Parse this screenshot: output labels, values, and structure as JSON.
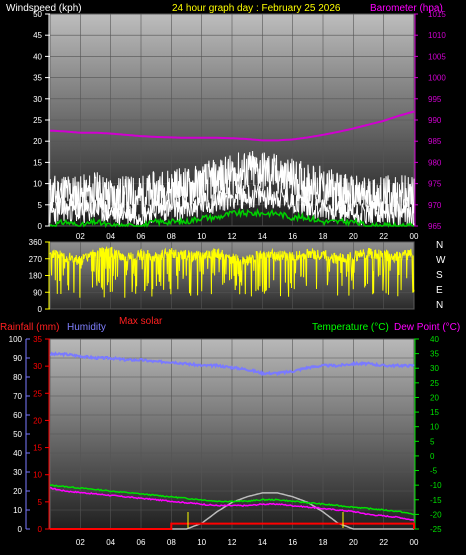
{
  "header": {
    "left_label": "Windspeed (kph)",
    "center_label": "24 hour graph day : February 25 2026",
    "right_label": "Barometer (hpa)"
  },
  "colors": {
    "wind": "#ffffff",
    "gust": "#ffffff",
    "wind_avg": "#00d000",
    "barometer": "#d000d0",
    "wind_dir": "#ffff00",
    "humidity": "#7a7aff",
    "temperature": "#00e000",
    "dew_point": "#ff00ff",
    "rainfall": "#ff0000",
    "solar": "#bbbbbb",
    "label_yellow": "#ffff00",
    "label_red": "#ff2020",
    "label_blue": "#8080ff",
    "label_green": "#00ff00",
    "label_magenta": "#ff00ff"
  },
  "x_ticks": [
    "02",
    "04",
    "06",
    "08",
    "10",
    "12",
    "14",
    "16",
    "18",
    "20",
    "22",
    "00"
  ],
  "chart_data": [
    {
      "type": "line",
      "title": "24 hour graph day : February 25 2026",
      "ylabel": "Windspeed (kph)",
      "y2label": "Barometer (hpa)",
      "ylim": [
        0,
        50
      ],
      "y2lim": [
        965,
        1015
      ],
      "yticks": [
        0,
        5,
        10,
        15,
        20,
        25,
        30,
        35,
        40,
        45,
        50
      ],
      "y2ticks": [
        965,
        970,
        975,
        980,
        985,
        990,
        995,
        1000,
        1005,
        1010,
        1015
      ],
      "x_hours": [
        0,
        1,
        2,
        3,
        4,
        5,
        6,
        7,
        8,
        9,
        10,
        11,
        12,
        13,
        14,
        15,
        16,
        17,
        18,
        19,
        20,
        21,
        22,
        23,
        24
      ],
      "series": [
        {
          "values": [
            3,
            4,
            3,
            4,
            3,
            3,
            3,
            4,
            4,
            4,
            5,
            6,
            7,
            7,
            7,
            7,
            6,
            5,
            4,
            4,
            3,
            3,
            3,
            3,
            3
          ]
        },
        {
          "values": [
            7,
            8,
            7,
            8,
            7,
            7,
            7,
            8,
            9,
            9,
            10,
            11,
            12,
            13,
            13,
            12,
            11,
            10,
            9,
            8,
            7,
            7,
            7,
            7,
            7
          ]
        },
        {
          "values": [
            0,
            1,
            0,
            1,
            0,
            0,
            0,
            1,
            1,
            1,
            2,
            2,
            3,
            3,
            3,
            3,
            2,
            2,
            1,
            1,
            1,
            0,
            0,
            0,
            0
          ]
        },
        {
          "axis": "y2",
          "values": [
            987.5,
            987.3,
            987,
            987,
            986.8,
            986.5,
            986.2,
            986,
            985.9,
            985.8,
            985.8,
            985.8,
            985.7,
            985.5,
            985.2,
            985.2,
            985.4,
            985.9,
            986.5,
            987.2,
            988,
            988.9,
            989.8,
            991,
            992
          ]
        }
      ]
    },
    {
      "type": "line",
      "ylim": [
        0,
        360
      ],
      "yticks": [
        0,
        90,
        180,
        270,
        360
      ],
      "compass_labels": [
        "N",
        "W",
        "S",
        "E",
        "N"
      ],
      "series": [
        {
          "baseline_deg": 290,
          "values": [
            300,
            280,
            260,
            300,
            310,
            270,
            290,
            280,
            300,
            290,
            280,
            300,
            270,
            260,
            300,
            290,
            280,
            300,
            290,
            270,
            280,
            300,
            290,
            280,
            300
          ]
        }
      ]
    },
    {
      "type": "line",
      "ylabel_left_a": "Rainfall (mm)",
      "ylabel_left_b": "Humidity",
      "extra_label": "Max solar",
      "ylabel_right_a": "Temperature (°C)",
      "ylabel_right_b": "Dew Point (°C)",
      "humidity_lim": [
        0,
        100
      ],
      "humidity_ticks": [
        0,
        10,
        20,
        30,
        40,
        50,
        60,
        70,
        80,
        90,
        100
      ],
      "rain_lim": [
        0,
        35
      ],
      "rain_ticks": [
        0,
        5,
        10,
        15,
        20,
        25,
        30,
        35
      ],
      "temp_lim": [
        -25,
        40
      ],
      "temp_ticks": [
        -25,
        -20,
        -15,
        -10,
        -5,
        0,
        5,
        10,
        15,
        20,
        25,
        30,
        35,
        40
      ],
      "x_hours": [
        0,
        1,
        2,
        3,
        4,
        5,
        6,
        7,
        8,
        9,
        10,
        11,
        12,
        13,
        14,
        15,
        16,
        17,
        18,
        19,
        20,
        21,
        22,
        23,
        24
      ],
      "series": [
        {
          "axis": "humidity",
          "values": [
            92,
            92,
            91,
            90,
            90,
            89,
            89,
            88,
            88,
            87,
            86,
            86,
            85,
            84,
            82,
            82,
            83,
            85,
            86,
            86,
            87,
            87,
            86,
            86,
            86
          ]
        },
        {
          "axis": "temp",
          "values": [
            -10,
            -10.5,
            -11,
            -11.5,
            -12,
            -12.5,
            -13,
            -13.5,
            -14,
            -14.5,
            -15,
            -15.5,
            -15.5,
            -15.5,
            -15,
            -15,
            -15.5,
            -16,
            -16.5,
            -17,
            -17.5,
            -18,
            -18.5,
            -19,
            -20
          ]
        },
        {
          "axis": "temp",
          "values": [
            -11,
            -12,
            -12.5,
            -13,
            -13.5,
            -14,
            -14.5,
            -15,
            -15.5,
            -16,
            -16.5,
            -17,
            -17,
            -17,
            -16.5,
            -16.5,
            -17,
            -17.5,
            -18,
            -18.5,
            -19,
            -20,
            -20.5,
            -21,
            -22
          ]
        },
        {
          "axis": "rain",
          "values": [
            0,
            0,
            0,
            0,
            0,
            0,
            0,
            0,
            1,
            1,
            1,
            1,
            1,
            1,
            1,
            1,
            1,
            1,
            1,
            1,
            1,
            1,
            1,
            1,
            0
          ]
        },
        {
          "axis": "humidity",
          "values": [
            0,
            0,
            0,
            0,
            0,
            0,
            0,
            0,
            0,
            0,
            3,
            9,
            14,
            17,
            19,
            19,
            17,
            14,
            9,
            3,
            0,
            0,
            0,
            0,
            0
          ]
        }
      ]
    }
  ]
}
